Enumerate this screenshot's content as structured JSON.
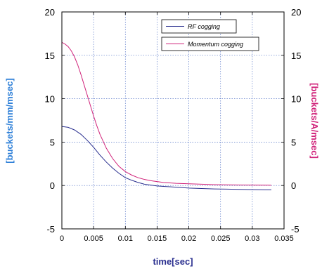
{
  "chart_data": {
    "type": "line",
    "xlabel": "time[sec]",
    "ylabel_left": "[buckets/mm/msec]",
    "ylabel_right": "[buckets/A/msec]",
    "xlim": [
      0,
      0.035
    ],
    "ylim_left": [
      -5,
      20
    ],
    "ylim_right": [
      -5,
      20
    ],
    "grid": true,
    "legend_placement": "top-right",
    "x_ticks": [
      "0",
      "0.005",
      "0.01",
      "0.015",
      "0.02",
      "0.025",
      "0.03",
      "0.035"
    ],
    "y_ticks_left": [
      "-5",
      "0",
      "5",
      "10",
      "15",
      "20"
    ],
    "y_ticks_right": [
      "-5",
      "0",
      "5",
      "10",
      "15",
      "20"
    ],
    "series": [
      {
        "name": "RF cogging",
        "axis": "left",
        "color": "#2a2f8f",
        "x": [
          0,
          0.001,
          0.002,
          0.003,
          0.004,
          0.005,
          0.006,
          0.007,
          0.008,
          0.009,
          0.01,
          0.011,
          0.012,
          0.013,
          0.014,
          0.015,
          0.016,
          0.017,
          0.018,
          0.019,
          0.02,
          0.022,
          0.024,
          0.026,
          0.028,
          0.03,
          0.032,
          0.033
        ],
        "y": [
          6.8,
          6.7,
          6.4,
          5.9,
          5.2,
          4.4,
          3.5,
          2.7,
          2.0,
          1.4,
          0.9,
          0.6,
          0.35,
          0.15,
          0.05,
          -0.05,
          -0.1,
          -0.15,
          -0.2,
          -0.25,
          -0.3,
          -0.35,
          -0.4,
          -0.42,
          -0.45,
          -0.48,
          -0.5,
          -0.5
        ]
      },
      {
        "name": "Momentum cogging",
        "axis": "right",
        "color": "#d0237a",
        "x": [
          0,
          0.0005,
          0.001,
          0.0015,
          0.002,
          0.0025,
          0.003,
          0.0035,
          0.004,
          0.0045,
          0.005,
          0.0055,
          0.006,
          0.007,
          0.008,
          0.009,
          0.01,
          0.011,
          0.012,
          0.013,
          0.014,
          0.015,
          0.016,
          0.018,
          0.02,
          0.022,
          0.024,
          0.026,
          0.028,
          0.03,
          0.032,
          0.033
        ],
        "y": [
          16.5,
          16.3,
          16.0,
          15.5,
          14.8,
          13.9,
          12.8,
          11.6,
          10.4,
          9.2,
          8.0,
          6.9,
          5.9,
          4.3,
          3.1,
          2.2,
          1.6,
          1.2,
          0.9,
          0.7,
          0.55,
          0.45,
          0.35,
          0.25,
          0.2,
          0.15,
          0.1,
          0.08,
          0.06,
          0.05,
          0.04,
          0.03
        ]
      }
    ]
  },
  "colors": {
    "left_axis_title": "#2f80d8",
    "right_axis_title": "#d0237a",
    "grid": "#5a78c8",
    "frame": "#000000"
  }
}
